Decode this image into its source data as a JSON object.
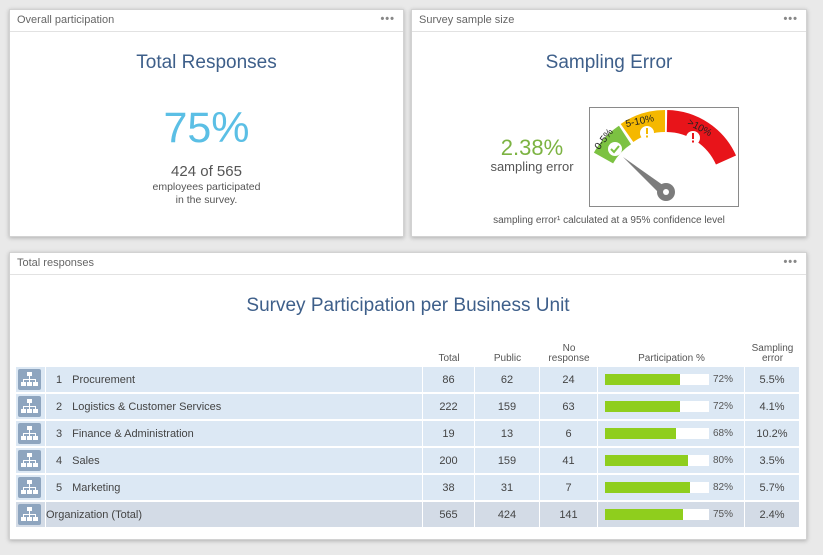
{
  "overall": {
    "header": "Overall participation",
    "title": "Total Responses",
    "percent": "75%",
    "count_line": "424 of 565",
    "note_line1": "employees participated",
    "note_line2": "in the survey."
  },
  "sample": {
    "header": "Survey sample size",
    "title": "Sampling Error",
    "value": "2.38%",
    "value_label": "sampling error",
    "gauge": {
      "band_low": "0-5%",
      "band_mid": "5-10%",
      "band_high": ">10%",
      "colors": {
        "low": "#7cc242",
        "mid": "#f5b800",
        "high": "#e8141a"
      }
    },
    "footnote": "sampling error¹ calculated at a 95% confidence level"
  },
  "responses": {
    "header": "Total responses",
    "title": "Survey Participation per Business Unit",
    "columns": {
      "total": "Total",
      "public": "Public",
      "no_response_1": "No",
      "no_response_2": "response",
      "participation": "Participation %",
      "sampling_1": "Sampling",
      "sampling_2": "error"
    },
    "rows": [
      {
        "num": "1",
        "name": "Procurement",
        "total": "86",
        "public": "62",
        "no_response": "24",
        "participation": 0.72,
        "participation_label": "72%",
        "sampling_error": "5.5%"
      },
      {
        "num": "2",
        "name": "Logistics & Customer Services",
        "total": "222",
        "public": "159",
        "no_response": "63",
        "participation": 0.72,
        "participation_label": "72%",
        "sampling_error": "4.1%"
      },
      {
        "num": "3",
        "name": "Finance & Administration",
        "total": "19",
        "public": "13",
        "no_response": "6",
        "participation": 0.68,
        "participation_label": "68%",
        "sampling_error": "10.2%"
      },
      {
        "num": "4",
        "name": "Sales",
        "total": "200",
        "public": "159",
        "no_response": "41",
        "participation": 0.8,
        "participation_label": "80%",
        "sampling_error": "3.5%"
      },
      {
        "num": "5",
        "name": "Marketing",
        "total": "38",
        "public": "31",
        "no_response": "7",
        "participation": 0.82,
        "participation_label": "82%",
        "sampling_error": "5.7%"
      }
    ],
    "total_row": {
      "name": "Organization (Total)",
      "total": "565",
      "public": "424",
      "no_response": "141",
      "participation": 0.75,
      "participation_label": "75%",
      "sampling_error": "2.4%"
    }
  },
  "icons": {
    "menu": "more-dots-icon",
    "unit": "org-chart-icon",
    "check": "checkmark-icon",
    "warning": "exclamation-icon"
  },
  "colors": {
    "title_blue": "#3e5f8a",
    "percent_blue": "#5bbfe5",
    "error_green": "#7cb342",
    "bar_green": "#8fce1d",
    "row_bg": "#dce8f4",
    "total_row_bg": "#d3dbe6"
  }
}
